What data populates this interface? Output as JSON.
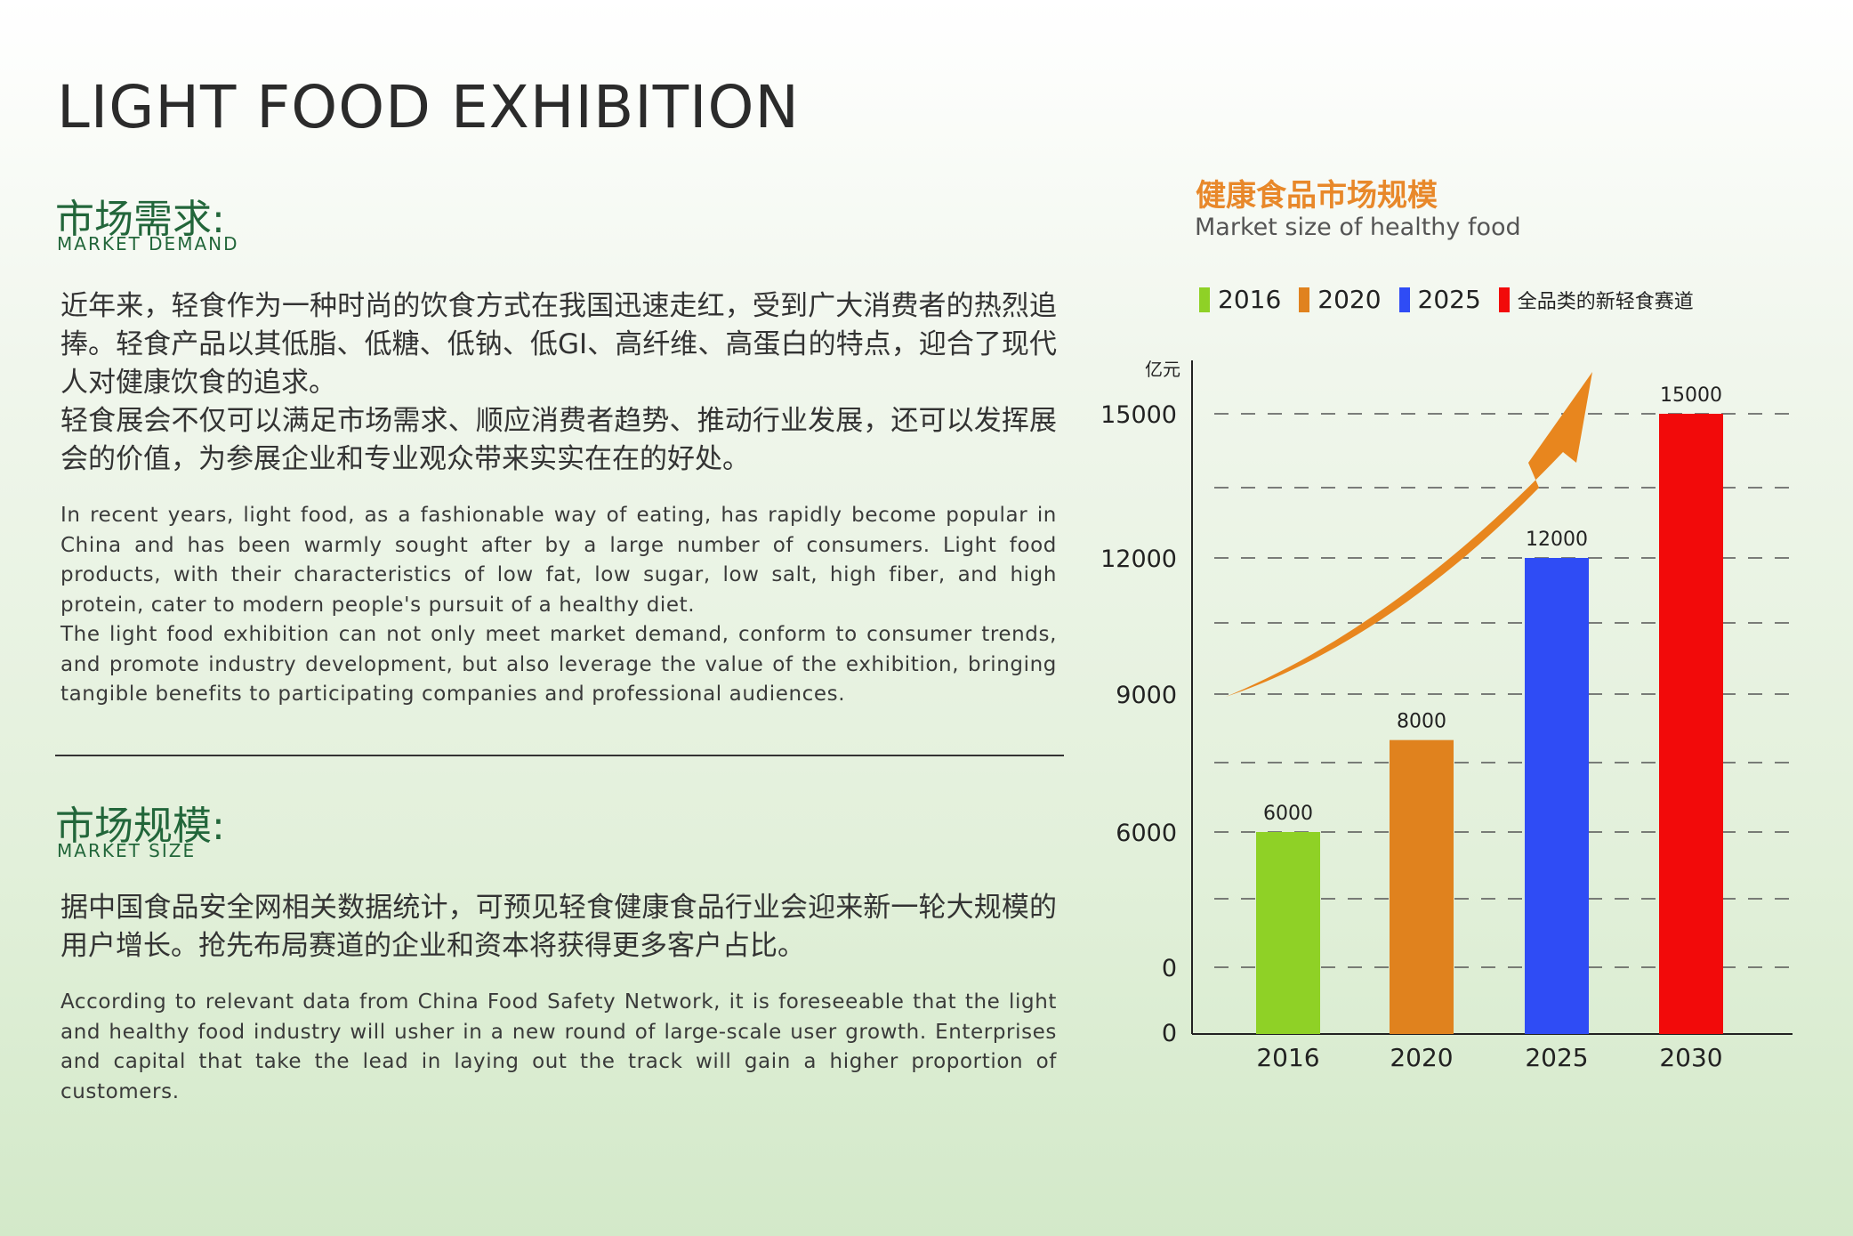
{
  "page": {
    "title": "LIGHT FOOD EXHIBITION"
  },
  "market_demand": {
    "title": "市场需求:",
    "subtitle": "MARKET DEMAND",
    "cn_text": "近年来，轻食作为一种时尚的饮食方式在我国迅速走红，受到广大消费者的热烈追捧。轻食产品以其低脂、低糖、低钠、低GI、高纤维、高蛋白的特点，迎合了现代人对健康饮食的追求。\n轻食展会不仅可以满足市场需求、顺应消费者趋势、推动行业发展，还可以发挥展会的价值，为参展企业和专业观众带来实实在在的好处。",
    "en_text": "In recent years, light food, as a fashionable way of eating, has rapidly become popular in China and has been warmly sought after by a large number of consumers. Light food products, with their characteristics of low fat, low sugar, low salt, high fiber, and high protein, cater to modern people's pursuit of a healthy diet.\nThe light food exhibition can not only meet market demand, conform to consumer trends, and promote industry development, but also leverage the value of the exhibition, bringing tangible benefits to participating companies and professional audiences."
  },
  "market_size": {
    "title": "市场规模:",
    "subtitle": "MARKET SIZE",
    "cn_text": "据中国食品安全网相关数据统计，可预见轻食健康食品行业会迎来新一轮大规模的用户增长。抢先布局赛道的企业和资本将获得更多客户占比。",
    "en_text": "According to relevant data from China Food Safety Network, it is foreseeable that the light and healthy food industry will usher in a new round of large-scale user growth. Enterprises and capital that take the lead in laying out the track will gain a higher proportion of customers."
  },
  "chart_data": {
    "type": "bar",
    "title": "健康食品市场规模",
    "subtitle": "Market size of healthy food",
    "ylabel": "亿元",
    "categories": [
      "2016",
      "2020",
      "2025",
      "2030"
    ],
    "values": [
      6000,
      8000,
      12000,
      15000
    ],
    "data_labels": [
      "6000",
      "8000",
      "12000",
      "15000"
    ],
    "colors": [
      "#8fd126",
      "#e0821e",
      "#2f4cf5",
      "#f20a0a"
    ],
    "legend": [
      "2016",
      "2020",
      "2025",
      "全品类的新轻食赛道"
    ],
    "legend_placement": "top",
    "y_tick_labels": [
      "0",
      "0",
      "6000",
      "9000",
      "12000",
      "15000"
    ],
    "grid": "dashed",
    "trend_arrow_color": "#e8861e"
  }
}
